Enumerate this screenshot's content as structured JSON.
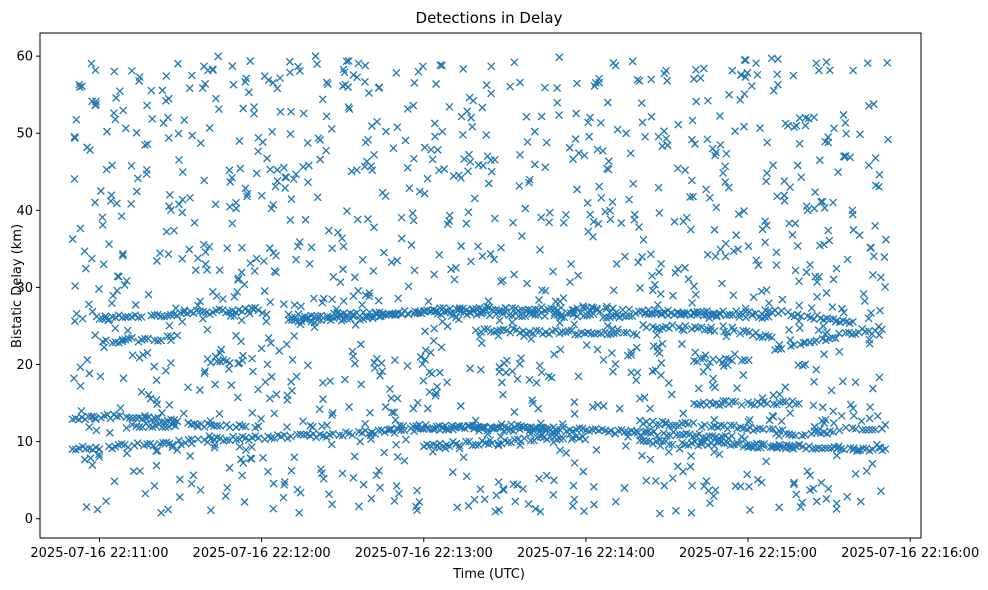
{
  "chart_data": {
    "type": "scatter",
    "title": "Detections in Delay",
    "xlabel": "Time (UTC)",
    "ylabel": "Bistatic Delay (km)",
    "x_axis_type": "datetime",
    "xlim": [
      "2025-07-16 22:10:38",
      "2025-07-16 22:16:04"
    ],
    "ylim": [
      -2.5,
      63
    ],
    "x_ticks": [
      "2025-07-16 22:11:00",
      "2025-07-16 22:12:00",
      "2025-07-16 22:13:00",
      "2025-07-16 22:14:00",
      "2025-07-16 22:15:00",
      "2025-07-16 22:16:00"
    ],
    "y_ticks": [
      0,
      10,
      20,
      30,
      40,
      50,
      60
    ],
    "marker": "x",
    "color": "#1f77b4",
    "grid": false,
    "legend": "none",
    "data_range": {
      "x": [
        "2025-07-16 22:10:50",
        "2025-07-16 22:15:52"
      ],
      "y": [
        0.5,
        60
      ]
    },
    "series": [
      {
        "tracks": [
          {
            "x": [
              "2025-07-16 22:10:50",
              "2025-07-16 22:11:00",
              "2025-07-16 22:11:20",
              "2025-07-16 22:11:40",
              "2025-07-16 22:12:00"
            ],
            "y": [
              9.0,
              9.2,
              9.7,
              10.2,
              10.5
            ]
          },
          {
            "x": [
              "2025-07-16 22:10:50",
              "2025-07-16 22:11:10",
              "2025-07-16 22:11:30"
            ],
            "y": [
              13.0,
              13.3,
              12.5
            ]
          },
          {
            "x": [
              "2025-07-16 22:11:10",
              "2025-07-16 22:11:40",
              "2025-07-16 22:12:00"
            ],
            "y": [
              12.0,
              12.2,
              11.8
            ]
          },
          {
            "x": [
              "2025-07-16 22:11:00",
              "2025-07-16 22:11:30",
              "2025-07-16 22:12:00"
            ],
            "y": [
              26.0,
              26.6,
              27.2
            ]
          },
          {
            "x": [
              "2025-07-16 22:11:00",
              "2025-07-16 22:11:30"
            ],
            "y": [
              23.0,
              23.5
            ]
          },
          {
            "x": [
              "2025-07-16 22:11:40",
              "2025-07-16 22:12:00"
            ],
            "y": [
              20.5,
              20.5
            ]
          },
          {
            "x": [
              "2025-07-16 22:12:00",
              "2025-07-16 22:12:30",
              "2025-07-16 22:13:00",
              "2025-07-16 22:13:30",
              "2025-07-16 22:14:00",
              "2025-07-16 22:14:30",
              "2025-07-16 22:15:00"
            ],
            "y": [
              10.5,
              11.0,
              11.6,
              12.0,
              11.4,
              11.0,
              10.5
            ]
          },
          {
            "x": [
              "2025-07-16 22:12:10",
              "2025-07-16 22:12:40",
              "2025-07-16 22:13:00",
              "2025-07-16 22:13:40",
              "2025-07-16 22:14:10",
              "2025-07-16 22:14:40",
              "2025-07-16 22:15:10"
            ],
            "y": [
              25.5,
              26.2,
              27.0,
              27.3,
              27.0,
              26.6,
              26.0
            ]
          },
          {
            "x": [
              "2025-07-16 22:12:10",
              "2025-07-16 22:12:40",
              "2025-07-16 22:13:10",
              "2025-07-16 22:13:40",
              "2025-07-16 22:14:10",
              "2025-07-16 22:14:40",
              "2025-07-16 22:15:10",
              "2025-07-16 22:15:40"
            ],
            "y": [
              26.3,
              26.5,
              26.8,
              26.5,
              26.3,
              26.6,
              26.8,
              25.5
            ]
          },
          {
            "x": [
              "2025-07-16 22:12:50",
              "2025-07-16 22:13:20",
              "2025-07-16 22:13:50"
            ],
            "y": [
              12.0,
              11.7,
              11.5
            ]
          },
          {
            "x": [
              "2025-07-16 22:13:20",
              "2025-07-16 22:13:50",
              "2025-07-16 22:14:20"
            ],
            "y": [
              24.5,
              24.2,
              23.8
            ]
          },
          {
            "x": [
              "2025-07-16 22:13:00",
              "2025-07-16 22:13:30",
              "2025-07-16 22:14:00"
            ],
            "y": [
              9.5,
              10.0,
              10.8
            ]
          },
          {
            "x": [
              "2025-07-16 22:14:20",
              "2025-07-16 22:14:50",
              "2025-07-16 22:15:20"
            ],
            "y": [
              10.0,
              9.7,
              9.3
            ]
          },
          {
            "x": [
              "2025-07-16 22:14:20",
              "2025-07-16 22:14:50",
              "2025-07-16 22:15:20"
            ],
            "y": [
              12.5,
              12.0,
              11.0
            ]
          },
          {
            "x": [
              "2025-07-16 22:14:20",
              "2025-07-16 22:14:50",
              "2025-07-16 22:15:10"
            ],
            "y": [
              25.0,
              24.5,
              23.5
            ]
          },
          {
            "x": [
              "2025-07-16 22:14:40",
              "2025-07-16 22:15:00",
              "2025-07-16 22:15:20"
            ],
            "y": [
              15.0,
              15.0,
              15.0
            ]
          },
          {
            "x": [
              "2025-07-16 22:14:40",
              "2025-07-16 22:15:00"
            ],
            "y": [
              20.5,
              20.5
            ]
          },
          {
            "x": [
              "2025-07-16 22:15:10",
              "2025-07-16 22:15:30",
              "2025-07-16 22:15:52"
            ],
            "y": [
              22.0,
              23.5,
              25.0
            ]
          },
          {
            "x": [
              "2025-07-16 22:15:20",
              "2025-07-16 22:15:35",
              "2025-07-16 22:15:52"
            ],
            "y": [
              11.0,
              11.5,
              12.0
            ]
          },
          {
            "x": [
              "2025-07-16 22:15:00",
              "2025-07-16 22:15:25",
              "2025-07-16 22:15:52"
            ],
            "y": [
              9.5,
              9.2,
              9.0
            ]
          }
        ]
      }
    ]
  }
}
